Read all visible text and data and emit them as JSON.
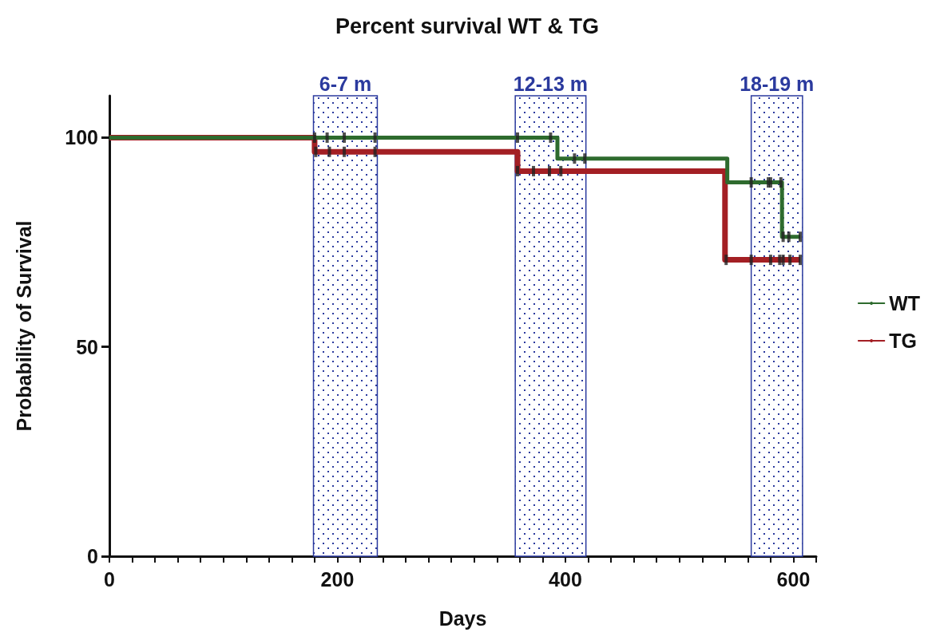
{
  "chart_data": {
    "type": "step",
    "title": "Percent survival WT & TG",
    "xlabel": "Days",
    "ylabel": "Probability of Survival",
    "xlim": [
      0,
      620
    ],
    "ylim": [
      0,
      110
    ],
    "xticks": [
      0,
      {
        "value": 20,
        "label": null
      },
      {
        "value": 40,
        "label": null
      },
      {
        "value": 60,
        "label": null
      },
      {
        "value": 80,
        "label": null
      },
      {
        "value": 100,
        "label": null
      },
      {
        "value": 120,
        "label": null
      },
      {
        "value": 140,
        "label": null
      },
      {
        "value": 160,
        "label": null
      },
      {
        "value": 180,
        "label": null
      },
      200,
      {
        "value": 220,
        "label": null
      },
      {
        "value": 240,
        "label": null
      },
      {
        "value": 260,
        "label": null
      },
      {
        "value": 280,
        "label": null
      },
      {
        "value": 300,
        "label": null
      },
      {
        "value": 320,
        "label": null
      },
      {
        "value": 340,
        "label": null
      },
      {
        "value": 360,
        "label": null
      },
      {
        "value": 380,
        "label": null
      },
      400,
      {
        "value": 420,
        "label": null
      },
      {
        "value": 440,
        "label": null
      },
      {
        "value": 460,
        "label": null
      },
      {
        "value": 480,
        "label": null
      },
      {
        "value": 500,
        "label": null
      },
      {
        "value": 520,
        "label": null
      },
      {
        "value": 540,
        "label": null
      },
      {
        "value": 560,
        "label": null
      },
      {
        "value": 580,
        "label": null
      },
      600,
      {
        "value": 620,
        "label": null
      }
    ],
    "yticks": [
      0,
      50,
      100
    ],
    "series": [
      {
        "name": "WT",
        "color": "#2e6b2e",
        "x": [
          0,
          393,
          542,
          590,
          606
        ],
        "values": [
          100,
          95,
          89.3,
          76.3,
          76.3
        ]
      },
      {
        "name": "TG",
        "color": "#a31f24",
        "x": [
          0,
          180,
          358,
          540,
          606
        ],
        "values": [
          100,
          96.6,
          92,
          70.8,
          70.8
        ]
      },
      {
        "color": "#222222",
        "type": "scatter",
        "marker": "square",
        "x": [
          180,
          191,
          206,
          233,
          358,
          387,
          408,
          417,
          563,
          578,
          580,
          589,
          591,
          596,
          606
        ],
        "values": [
          100,
          100,
          100,
          100,
          100,
          100,
          95,
          95,
          89.3,
          89.3,
          89.3,
          89.3,
          76.3,
          76.3,
          76.3
        ]
      },
      {
        "color": "#222222",
        "type": "scatter",
        "marker": "square",
        "x": [
          181,
          193,
          206,
          233,
          358,
          372,
          386,
          396,
          541,
          563,
          580,
          588,
          591,
          597,
          606
        ],
        "values": [
          96.6,
          96.6,
          96.6,
          96.6,
          92,
          92,
          92,
          92,
          70.8,
          70.8,
          70.8,
          70.8,
          70.8,
          70.8,
          70.8
        ]
      }
    ],
    "bands": [
      {
        "axis": "x",
        "from": 179,
        "to": 235,
        "label": "6-7 m",
        "color": "#2b3a9e"
      },
      {
        "axis": "x",
        "from": 356,
        "to": 418,
        "label": "12-13 m",
        "color": "#2b3a9e"
      },
      {
        "axis": "x",
        "from": 563,
        "to": 608,
        "label": "18-19 m",
        "color": "#2b3a9e"
      }
    ],
    "legend": "right",
    "grid": false,
    "line_style": "solid",
    "marker": "none"
  }
}
